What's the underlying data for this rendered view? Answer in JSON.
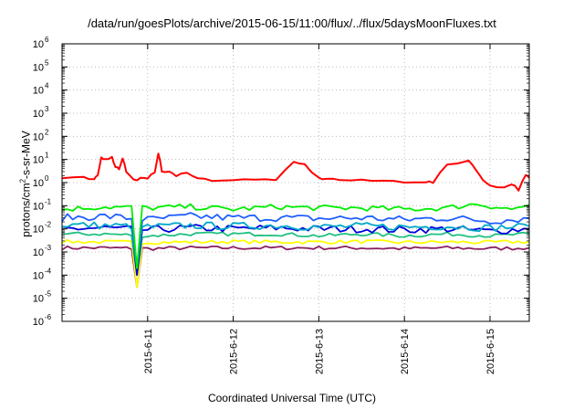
{
  "chart_data": {
    "type": "line",
    "title": "/data/run/goesPlots/archive/2015-06-15/11:00/flux/../flux/5daysMoonFluxes.txt",
    "ylabel": "protons/cm²-s-sr-MeV",
    "ylabel_parts": {
      "prefix": "protons/cm",
      "sup": "2",
      "suffix": "-s-sr-MeV"
    },
    "xlabel": "Coordinated Universal Time (UTC)",
    "y_scale": "log",
    "ylim": [
      1e-06,
      1000000.0
    ],
    "y_ticks": [
      {
        "value": 1e-06,
        "label_base": "10",
        "label_exp": "-6"
      },
      {
        "value": 1e-05,
        "label_base": "10",
        "label_exp": "-5"
      },
      {
        "value": 0.0001,
        "label_base": "10",
        "label_exp": "-4"
      },
      {
        "value": 0.001,
        "label_base": "10",
        "label_exp": "-3"
      },
      {
        "value": 0.01,
        "label_base": "10",
        "label_exp": "-2"
      },
      {
        "value": 0.1,
        "label_base": "10",
        "label_exp": "-1"
      },
      {
        "value": 1,
        "label_base": "10",
        "label_exp": "0"
      },
      {
        "value": 10,
        "label_base": "10",
        "label_exp": "1"
      },
      {
        "value": 100,
        "label_base": "10",
        "label_exp": "2"
      },
      {
        "value": 1000,
        "label_base": "10",
        "label_exp": "3"
      },
      {
        "value": 10000,
        "label_base": "10",
        "label_exp": "4"
      },
      {
        "value": 100000,
        "label_base": "10",
        "label_exp": "5"
      },
      {
        "value": 1000000,
        "label_base": "10",
        "label_exp": "6"
      }
    ],
    "xlim": [
      "2015-06-10 00:00",
      "2015-06-15 11:00"
    ],
    "x_ticks": [
      "2015-6-11",
      "2015-6-12",
      "2015-6-13",
      "2015-6-14",
      "2015-6-15"
    ],
    "grid": true,
    "legend": "none",
    "series": [
      {
        "color": "#ff0000",
        "x": [
          "2015-06-10 00:00",
          "2015-06-10 06:00",
          "2015-06-10 09:00",
          "2015-06-10 10:00",
          "2015-06-10 11:00",
          "2015-06-10 12:00",
          "2015-06-10 14:00",
          "2015-06-10 15:00",
          "2015-06-10 16:00",
          "2015-06-10 17:00",
          "2015-06-10 18:00",
          "2015-06-10 20:00",
          "2015-06-10 22:00",
          "2015-06-11 00:00",
          "2015-06-11 02:00",
          "2015-06-11 03:00",
          "2015-06-11 04:00",
          "2015-06-11 06:00",
          "2015-06-11 08:00",
          "2015-06-11 11:00",
          "2015-06-11 14:00",
          "2015-06-11 18:00",
          "2015-06-12 00:00",
          "2015-06-12 06:00",
          "2015-06-12 12:00",
          "2015-06-12 17:00",
          "2015-06-12 20:00",
          "2015-06-13 00:00",
          "2015-06-13 02:00",
          "2015-06-13 06:00",
          "2015-06-13 12:00",
          "2015-06-13 18:00",
          "2015-06-14 00:00",
          "2015-06-14 06:00",
          "2015-06-14 08:00",
          "2015-06-14 12:00",
          "2015-06-14 18:00",
          "2015-06-14 20:00",
          "2015-06-14 22:00",
          "2015-06-15 00:00",
          "2015-06-15 04:00",
          "2015-06-15 06:00",
          "2015-06-15 08:00",
          "2015-06-15 10:00",
          "2015-06-15 11:00"
        ],
        "values": [
          1.5,
          1.6,
          1.3,
          2,
          12,
          11,
          12,
          5,
          4,
          12,
          3,
          1.3,
          1.5,
          1.4,
          3,
          20,
          3,
          3,
          1.8,
          3,
          1.5,
          1.3,
          1.3,
          1.3,
          1.4,
          7,
          6,
          1.5,
          1.5,
          1.3,
          1.2,
          1.2,
          1.1,
          1.1,
          1.0,
          6,
          9,
          4,
          1.2,
          0.8,
          0.6,
          0.9,
          0.5,
          2,
          1.6
        ]
      },
      {
        "color": "#00ee00",
        "x": [
          "2015-06-10 00:00",
          "2015-06-10 12:00",
          "2015-06-11 00:00",
          "2015-06-11 12:00",
          "2015-06-12 00:00",
          "2015-06-12 12:00",
          "2015-06-13 00:00",
          "2015-06-13 12:00",
          "2015-06-14 00:00",
          "2015-06-14 12:00",
          "2015-06-14 20:00",
          "2015-06-15 06:00",
          "2015-06-15 11:00"
        ],
        "values": [
          0.07,
          0.09,
          0.08,
          0.09,
          0.07,
          0.09,
          0.08,
          0.08,
          0.07,
          0.08,
          0.12,
          0.07,
          0.11
        ]
      },
      {
        "color": "#1f5fff",
        "x": [
          "2015-06-10 00:00",
          "2015-06-10 12:00",
          "2015-06-11 00:00",
          "2015-06-11 12:00",
          "2015-06-12 00:00",
          "2015-06-12 12:00",
          "2015-06-13 00:00",
          "2015-06-13 12:00",
          "2015-06-14 00:00",
          "2015-06-14 12:00",
          "2015-06-15 00:00",
          "2015-06-15 11:00"
        ],
        "values": [
          0.03,
          0.035,
          0.025,
          0.035,
          0.03,
          0.03,
          0.028,
          0.03,
          0.025,
          0.03,
          0.022,
          0.028
        ]
      },
      {
        "color": "#00a8c8",
        "x": [
          "2015-06-10 00:00",
          "2015-06-10 12:00",
          "2015-06-11 00:00",
          "2015-06-11 12:00",
          "2015-06-12 00:00",
          "2015-06-12 12:00",
          "2015-06-13 00:00",
          "2015-06-13 12:00",
          "2015-06-14 00:00",
          "2015-06-14 12:00",
          "2015-06-15 00:00",
          "2015-06-15 11:00"
        ],
        "values": [
          0.015,
          0.014,
          0.012,
          0.014,
          0.013,
          0.014,
          0.012,
          0.013,
          0.012,
          0.013,
          0.011,
          0.013
        ]
      },
      {
        "color": "#0000dd",
        "x": [
          "2015-06-10 00:00",
          "2015-06-10 12:00",
          "2015-06-11 00:00",
          "2015-06-11 12:00",
          "2015-06-12 00:00",
          "2015-06-12 12:00",
          "2015-06-13 00:00",
          "2015-06-13 12:00",
          "2015-06-14 00:00",
          "2015-06-14 12:00",
          "2015-06-15 00:00",
          "2015-06-15 11:00"
        ],
        "values": [
          0.01,
          0.011,
          0.009,
          0.011,
          0.01,
          0.011,
          0.01,
          0.01,
          0.009,
          0.01,
          0.008,
          0.01
        ]
      },
      {
        "color": "#20c080",
        "x": [
          "2015-06-10 00:00",
          "2015-06-10 12:00",
          "2015-06-11 00:00",
          "2015-06-11 12:00",
          "2015-06-12 00:00",
          "2015-06-12 12:00",
          "2015-06-13 00:00",
          "2015-06-13 12:00",
          "2015-06-14 00:00",
          "2015-06-14 12:00",
          "2015-06-15 00:00",
          "2015-06-15 11:00"
        ],
        "values": [
          0.006,
          0.006,
          0.005,
          0.006,
          0.006,
          0.006,
          0.005,
          0.006,
          0.005,
          0.006,
          0.005,
          0.006
        ]
      },
      {
        "color": "#ffff00",
        "x": [
          "2015-06-10 00:00",
          "2015-06-10 12:00",
          "2015-06-11 00:00",
          "2015-06-11 12:00",
          "2015-06-12 00:00",
          "2015-06-12 12:00",
          "2015-06-13 00:00",
          "2015-06-13 12:00",
          "2015-06-14 00:00",
          "2015-06-14 12:00",
          "2015-06-15 00:00",
          "2015-06-15 11:00"
        ],
        "values": [
          0.0028,
          0.0027,
          0.0026,
          0.0027,
          0.0028,
          0.0027,
          0.0027,
          0.0028,
          0.0026,
          0.0027,
          0.0026,
          0.0028
        ]
      },
      {
        "color": "#8b2060",
        "x": [
          "2015-06-10 00:00",
          "2015-06-10 12:00",
          "2015-06-11 00:00",
          "2015-06-11 12:00",
          "2015-06-12 00:00",
          "2015-06-12 12:00",
          "2015-06-13 00:00",
          "2015-06-13 12:00",
          "2015-06-14 00:00",
          "2015-06-14 12:00",
          "2015-06-15 00:00",
          "2015-06-15 11:00"
        ],
        "values": [
          0.0015,
          0.0015,
          0.0014,
          0.0015,
          0.0015,
          0.0015,
          0.0015,
          0.0015,
          0.0014,
          0.0015,
          0.0014,
          0.0015
        ]
      }
    ],
    "dip": {
      "x": "2015-06-10 21:00",
      "min_values": [
        3e-05,
        0.0001,
        0.0002
      ]
    }
  }
}
